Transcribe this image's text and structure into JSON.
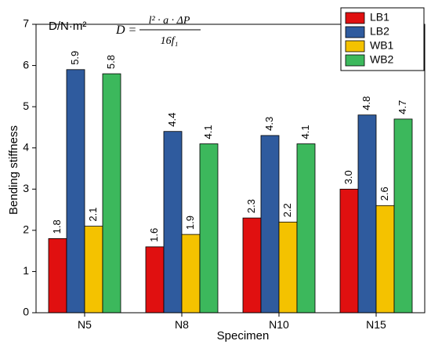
{
  "chart_data": {
    "type": "bar",
    "categories": [
      "N5",
      "N8",
      "N10",
      "N15"
    ],
    "series": [
      {
        "name": "LB1",
        "color": "#e01010",
        "values": [
          1.8,
          1.6,
          2.3,
          3.0
        ],
        "labels": [
          "1.8",
          "1.6",
          "2.3",
          "3.0"
        ]
      },
      {
        "name": "LB2",
        "color": "#2f5b9e",
        "values": [
          5.9,
          4.4,
          4.3,
          4.8
        ],
        "labels": [
          "5.9",
          "4.4",
          "4.3",
          "4.8"
        ]
      },
      {
        "name": "WB1",
        "color": "#f4c200",
        "values": [
          2.1,
          1.9,
          2.2,
          2.6
        ],
        "labels": [
          "2.1",
          "1.9",
          "2.2",
          "2.6"
        ]
      },
      {
        "name": "WB2",
        "color": "#3cb85c",
        "values": [
          5.8,
          4.1,
          4.1,
          4.7
        ],
        "labels": [
          "5.8",
          "4.1",
          "4.1",
          "4.7"
        ]
      }
    ],
    "xlabel": "Specimen",
    "ylabel": "Bending stiffness",
    "unit_label": "D/N·m²",
    "ylim": [
      0,
      7
    ],
    "yticks": [
      "0",
      "1",
      "2",
      "3",
      "4",
      "5",
      "6",
      "7"
    ],
    "legend_position": "top-right",
    "grid": false,
    "formula": {
      "lhs": "D =",
      "numerator": "l² · a · ΔP",
      "denominator": "16f₁"
    }
  }
}
